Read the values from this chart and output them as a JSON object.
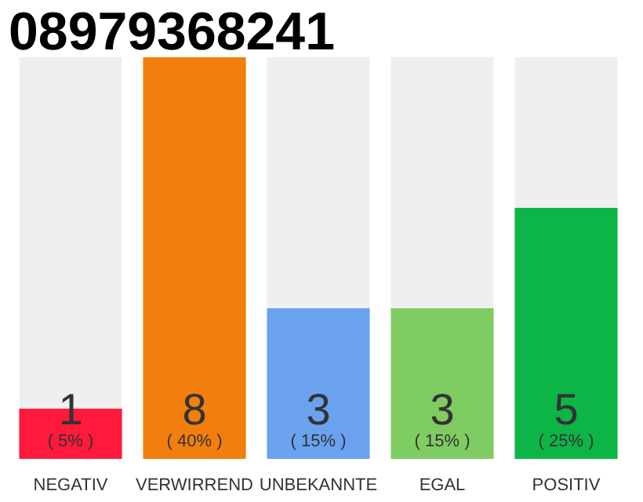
{
  "chart_data": {
    "type": "bar",
    "title": "08979368241",
    "stacked": true,
    "categories": [
      "NEGATIV",
      "VERWIRREND",
      "UNBEKANNTE",
      "EGAL",
      "POSITIV"
    ],
    "series": [
      {
        "colors": [
          "#ff1a3c",
          "#f27e0d",
          "#6aa2f0",
          "#7fcc62",
          "#0db446"
        ],
        "values": [
          1,
          8,
          3,
          3,
          5
        ],
        "data_labels": true
      },
      {
        "color": "#efefef",
        "values": [
          7,
          0,
          5,
          5,
          3
        ]
      }
    ],
    "ylim": [
      0,
      8
    ],
    "grid": false,
    "annotations": [
      "( 5% )",
      "( 40% )",
      "( 15% )",
      "( 15% )",
      "( 25% )"
    ]
  }
}
